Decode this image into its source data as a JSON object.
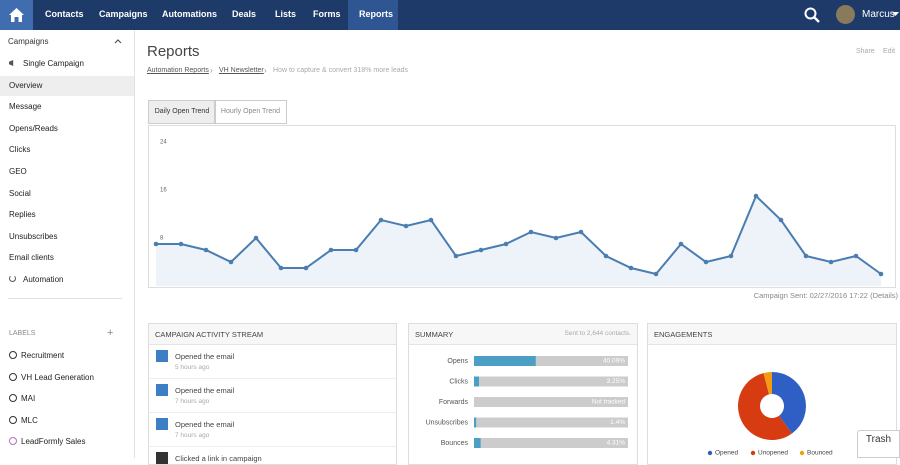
{
  "nav": {
    "items": [
      "Contacts",
      "Campaigns",
      "Automations",
      "Deals",
      "Lists",
      "Forms",
      "Reports"
    ],
    "user": "Marcus"
  },
  "sidebar": {
    "section": "Campaigns",
    "items": [
      "Single Campaign",
      "Overview",
      "Message",
      "Opens/Reads",
      "Clicks",
      "GEO",
      "Social",
      "Replies",
      "Unsubscribes",
      "Email clients",
      "Automation"
    ],
    "labels_title": "LABELS",
    "labels": [
      "Recruitment",
      "VH Lead Generation",
      "MAI",
      "MLC",
      "LeadFormly Sales"
    ]
  },
  "header": {
    "title": "Reports",
    "share": "Share",
    "edit": "Edit",
    "breadcrumb": [
      "Automation Reports",
      "VH Newsletter",
      "How to capture & convert 318% more leads"
    ]
  },
  "tabs": [
    "Daily Open Trend",
    "Hourly Open Trend"
  ],
  "campaign_sent": "Campaign Sent: 02/27/2016 17:22",
  "details": "(Details)",
  "activity": {
    "title": "CAMPAIGN ACTIVITY STREAM",
    "items": [
      {
        "text": "Opened the email",
        "time": "5 hours ago"
      },
      {
        "text": "Opened the email",
        "time": "7 hours ago"
      },
      {
        "text": "Opened the email",
        "time": "7 hours ago"
      },
      {
        "text": "Clicked a link in campaign",
        "time": null
      }
    ]
  },
  "trash": "Trash",
  "chart_data": [
    {
      "type": "line",
      "categories": [
        null,
        null,
        null,
        null,
        null,
        null,
        null,
        null,
        null,
        null,
        null,
        null,
        null,
        null,
        null,
        null,
        null,
        null,
        null,
        null,
        null,
        null,
        null,
        null,
        null,
        null,
        null,
        null,
        null,
        null
      ],
      "values": [
        7,
        7,
        6,
        4,
        8,
        3,
        3,
        6,
        6,
        11,
        10,
        11,
        5,
        6,
        7,
        9,
        8,
        9,
        5,
        3,
        2,
        7,
        4,
        5,
        15,
        11,
        5,
        4,
        5,
        2
      ],
      "color": "#4a7db0",
      "ylim": [
        0,
        24
      ],
      "yticks": [
        8,
        16,
        24
      ],
      "grid": false
    },
    {
      "type": "bar",
      "title": "SUMMARY",
      "subtitle": "Sent to 2,644 contacts.",
      "categories": [
        "Opens",
        "Clicks",
        "Forwards",
        "Unsubscribes",
        "Bounces"
      ],
      "values": [
        40.09,
        3.25,
        null,
        1.4,
        4.31
      ],
      "value_labels": [
        "40.09%",
        "3.25%",
        "Not tracked",
        "1.4%",
        "4.31%"
      ],
      "color": "#4b9fc4",
      "xlim": [
        0,
        100
      ]
    },
    {
      "type": "pie",
      "title": "ENGAGEMENTS",
      "categories": [
        "Opened",
        "Unopened",
        "Bounced"
      ],
      "values": [
        40,
        56,
        4
      ],
      "colors": [
        "#2f5fc4",
        "#d63b12",
        "#f39c12"
      ]
    }
  ]
}
